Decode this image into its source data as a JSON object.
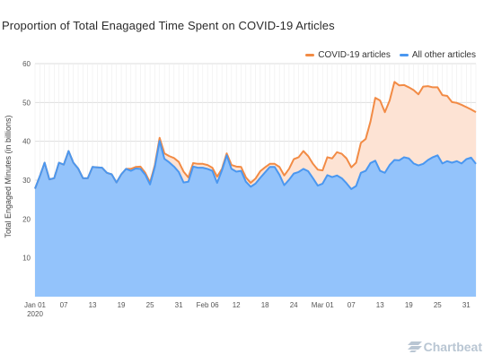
{
  "title": "Proportion of Total Enagaged Time Spent on COVID-19 Articles",
  "brand": "Chartbeat",
  "chart_data": {
    "type": "area",
    "title": "Proportion of Total Enagaged Time Spent on COVID-19 Articles",
    "xlabel": "",
    "ylabel": "Total Engaged Minutes (in billions)",
    "ylim": [
      0,
      60
    ],
    "yticks": [
      10,
      20,
      30,
      40,
      50,
      60
    ],
    "grid": true,
    "legend_position": "top-right",
    "x": [
      "2020-01-01",
      "2020-01-02",
      "2020-01-03",
      "2020-01-04",
      "2020-01-05",
      "2020-01-06",
      "2020-01-07",
      "2020-01-08",
      "2020-01-09",
      "2020-01-10",
      "2020-01-11",
      "2020-01-12",
      "2020-01-13",
      "2020-01-14",
      "2020-01-15",
      "2020-01-16",
      "2020-01-17",
      "2020-01-18",
      "2020-01-19",
      "2020-01-20",
      "2020-01-21",
      "2020-01-22",
      "2020-01-23",
      "2020-01-24",
      "2020-01-25",
      "2020-01-26",
      "2020-01-27",
      "2020-01-28",
      "2020-01-29",
      "2020-01-30",
      "2020-01-31",
      "2020-02-01",
      "2020-02-02",
      "2020-02-03",
      "2020-02-04",
      "2020-02-05",
      "2020-02-06",
      "2020-02-07",
      "2020-02-08",
      "2020-02-09",
      "2020-02-10",
      "2020-02-11",
      "2020-02-12",
      "2020-02-13",
      "2020-02-14",
      "2020-02-15",
      "2020-02-16",
      "2020-02-17",
      "2020-02-18",
      "2020-02-19",
      "2020-02-20",
      "2020-02-21",
      "2020-02-22",
      "2020-02-23",
      "2020-02-24",
      "2020-02-25",
      "2020-02-26",
      "2020-02-27",
      "2020-02-28",
      "2020-02-29",
      "2020-03-01",
      "2020-03-02",
      "2020-03-03",
      "2020-03-04",
      "2020-03-05",
      "2020-03-06",
      "2020-03-07",
      "2020-03-08",
      "2020-03-09",
      "2020-03-10",
      "2020-03-11",
      "2020-03-12",
      "2020-03-13",
      "2020-03-14",
      "2020-03-15",
      "2020-03-16",
      "2020-03-17",
      "2020-03-18",
      "2020-03-19",
      "2020-03-20",
      "2020-03-21",
      "2020-03-22",
      "2020-03-23",
      "2020-03-24",
      "2020-03-25",
      "2020-03-26",
      "2020-03-27",
      "2020-03-28",
      "2020-03-29",
      "2020-03-30",
      "2020-03-31",
      "2020-04-01",
      "2020-04-02"
    ],
    "xtick_labels": [
      "Jan 01",
      "07",
      "13",
      "19",
      "25",
      "31",
      "Feb 06",
      "12",
      "18",
      "24",
      "Mar 01",
      "07",
      "13",
      "19",
      "25",
      "31"
    ],
    "xtick_year": "2020",
    "series": [
      {
        "name": "COVID-19 articles",
        "color": "#f28b45",
        "fill": "#fde3d4",
        "values": [
          27.8,
          31,
          34.5,
          30.2,
          30.5,
          34.5,
          34,
          37.5,
          34.5,
          33,
          30.5,
          30.5,
          33.4,
          33.3,
          33.2,
          31.9,
          31.5,
          29.4,
          31.5,
          32.9,
          32.9,
          33.4,
          33.5,
          31.9,
          29.4,
          33.9,
          40.9,
          36.9,
          36.2,
          35.7,
          34.7,
          32.2,
          30.7,
          34.4,
          34.2,
          34.2,
          33.9,
          33.2,
          30.9,
          32.9,
          36.9,
          33.9,
          33.5,
          33.4,
          30.7,
          29.3,
          30.4,
          32.3,
          33.3,
          34.2,
          34.2,
          33.4,
          31.2,
          32.9,
          35.4,
          35.9,
          37.5,
          36.2,
          34.2,
          32.7,
          32.5,
          35.9,
          35.6,
          37.2,
          36.8,
          35.6,
          33.3,
          34.5,
          39.6,
          40.6,
          45.1,
          51.2,
          50.5,
          47.5,
          50.5,
          55.3,
          54.4,
          54.5,
          53.9,
          53.2,
          52.1,
          54.1,
          54.2,
          53.9,
          53.9,
          51.9,
          51.7,
          50.1,
          49.9,
          49.4,
          48.8,
          48.2,
          47.5
        ]
      },
      {
        "name": "All other articles",
        "color": "#4a97f0",
        "fill": "#93c3fb",
        "values": [
          27.8,
          31,
          34.5,
          30.2,
          30.5,
          34.5,
          34,
          37.5,
          34.5,
          33,
          30.5,
          30.5,
          33.4,
          33.3,
          33.2,
          31.9,
          31.5,
          29.4,
          31.5,
          32.9,
          32.4,
          33,
          32.9,
          31.4,
          28.9,
          33.4,
          40.1,
          35.5,
          34.6,
          33.5,
          32.1,
          29.4,
          29.6,
          33.5,
          33.2,
          33.2,
          32.9,
          32.4,
          29.3,
          32.5,
          36.4,
          32.9,
          32.2,
          32.4,
          29.6,
          28.3,
          29.1,
          30.6,
          32,
          33.4,
          33.4,
          31.4,
          28.7,
          30.1,
          31.7,
          32.1,
          32.9,
          32.3,
          30.5,
          28.6,
          29.1,
          31.3,
          30.8,
          31.2,
          30.5,
          29.2,
          27.7,
          28.5,
          31.9,
          32.4,
          34.4,
          35,
          32.4,
          31.9,
          33.9,
          35.2,
          35.1,
          35.9,
          35.6,
          34.3,
          33.8,
          34.2,
          35.2,
          35.9,
          36.4,
          34.3,
          34.9,
          34.5,
          34.9,
          34.3,
          35.4,
          35.8,
          34.2
        ]
      }
    ]
  }
}
